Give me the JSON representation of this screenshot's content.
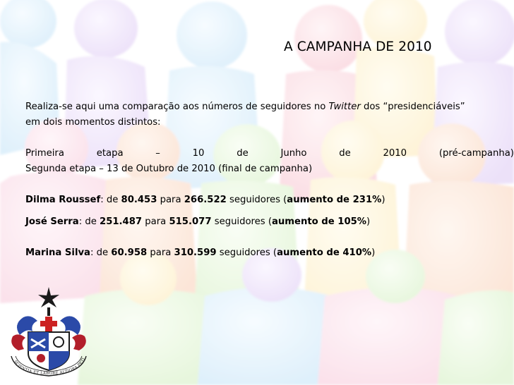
{
  "slide": {
    "title": "A CAMPANHA DE 2010",
    "intro_before": "Realiza-se aqui uma comparação aos números de seguidores no ",
    "intro_italic": "Twitter",
    "intro_after": " dos “presidenciáveis”",
    "intro_line2": "em dois momentos distintos:",
    "stage1_words": [
      "Primeira",
      "etapa",
      "–",
      "10",
      "de",
      "Junho",
      "de",
      "2010",
      "(pré-campanha)"
    ],
    "stage2": "Segunda etapa – 13 de Outubro de 2010 (final de campanha)",
    "candidates": [
      {
        "name": "Dilma Roussef",
        "sep": ": de ",
        "from": "80.453",
        "mid": " para ",
        "to": "266.522",
        "tail": " seguidores (",
        "increase": "aumento de 231%",
        "close": ")"
      },
      {
        "name": "José Serra",
        "sep": ": de ",
        "from": "251.487",
        "mid": " para ",
        "to": "515.077",
        "tail": " seguidores (",
        "increase": "aumento de 105%",
        "close": ")"
      },
      {
        "name": "Marina Silva",
        "sep": ": de ",
        "from": "60.958",
        "mid": " para ",
        "to": "310.599",
        "tail": " seguidores (",
        "increase": "aumento de 410%",
        "close": ")"
      }
    ]
  },
  "emblem": {
    "motto": "SCIENTIA ET LABORE ALTIORA PETIMUS",
    "icon": "university-coat-of-arms-icon"
  },
  "colors": {
    "figure_colors": [
      "#f4a7c0",
      "#f7b08a",
      "#fbd48c",
      "#ffe98f",
      "#b9e69a",
      "#a8d8f5",
      "#c7a6ec",
      "#f49cb0",
      "#98c9ef",
      "#b7e28f"
    ]
  }
}
